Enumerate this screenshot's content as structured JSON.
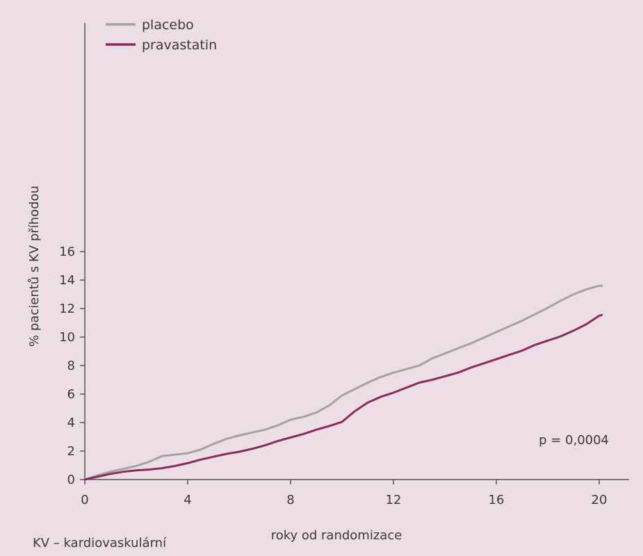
{
  "chart_data": {
    "type": "line",
    "title": "",
    "xlabel": "roky od randomizace",
    "ylabel": "% pacientů s KV příhodou",
    "xlim": [
      0,
      21
    ],
    "ylim": [
      0,
      16
    ],
    "xticks": [
      0,
      4,
      8,
      12,
      16,
      20
    ],
    "yticks": [
      0,
      2,
      4,
      6,
      8,
      10,
      12,
      14,
      16
    ],
    "grid": false,
    "legend_position": "top-left",
    "annotation": "p = 0,0004",
    "footnote": "KV – kardiovaskulární",
    "series": [
      {
        "name": "placebo",
        "color": "#a3a3a3",
        "x": [
          0,
          0.5,
          1,
          1.5,
          2,
          2.5,
          3,
          3.5,
          4,
          4.5,
          5,
          5.5,
          6,
          6.5,
          7,
          7.5,
          8,
          8.5,
          9,
          9.5,
          10,
          10.5,
          11,
          11.5,
          12,
          12.5,
          13,
          13.5,
          14,
          14.5,
          15,
          15.5,
          16,
          16.5,
          17,
          17.5,
          18,
          18.5,
          19,
          19.5,
          20,
          20.1
        ],
        "y": [
          0,
          0.3,
          0.55,
          0.75,
          0.95,
          1.25,
          1.65,
          1.75,
          1.85,
          2.1,
          2.5,
          2.85,
          3.1,
          3.3,
          3.5,
          3.8,
          4.2,
          4.4,
          4.7,
          5.2,
          5.9,
          6.35,
          6.8,
          7.2,
          7.5,
          7.75,
          8.0,
          8.5,
          8.85,
          9.2,
          9.55,
          9.95,
          10.35,
          10.75,
          11.15,
          11.6,
          12.05,
          12.55,
          13.0,
          13.35,
          13.6,
          13.6
        ]
      },
      {
        "name": "pravastatin",
        "color": "#8b2a5c",
        "x": [
          0,
          0.5,
          1,
          1.5,
          2,
          2.5,
          3,
          3.5,
          4,
          4.5,
          5,
          5.5,
          6,
          6.5,
          7,
          7.5,
          8,
          8.5,
          9,
          9.5,
          10,
          10.5,
          11,
          11.5,
          12,
          12.5,
          13,
          13.5,
          14,
          14.5,
          15,
          15.5,
          16,
          16.5,
          17,
          17.5,
          18,
          18.5,
          19,
          19.5,
          20,
          20.1
        ],
        "y": [
          0,
          0.2,
          0.4,
          0.55,
          0.65,
          0.7,
          0.8,
          0.95,
          1.15,
          1.4,
          1.6,
          1.8,
          1.95,
          2.15,
          2.4,
          2.7,
          2.95,
          3.2,
          3.5,
          3.75,
          4.05,
          4.8,
          5.4,
          5.8,
          6.1,
          6.45,
          6.8,
          7.0,
          7.25,
          7.5,
          7.85,
          8.15,
          8.45,
          8.75,
          9.05,
          9.45,
          9.75,
          10.05,
          10.45,
          10.9,
          11.5,
          11.55
        ]
      }
    ]
  }
}
